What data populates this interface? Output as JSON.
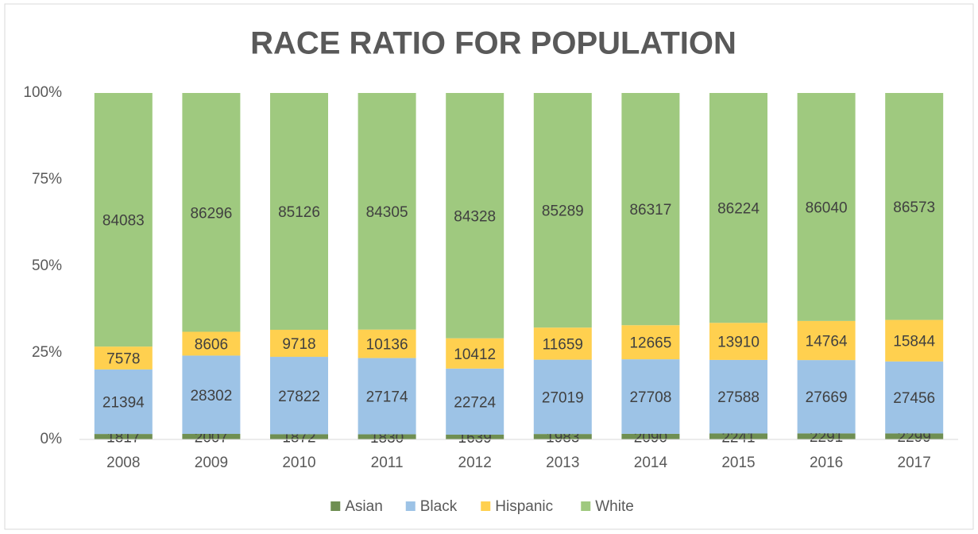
{
  "chart_data": {
    "type": "bar",
    "stacking": "percent",
    "title": "RACE RATIO FOR POPULATION",
    "categories": [
      "2008",
      "2009",
      "2010",
      "2011",
      "2012",
      "2013",
      "2014",
      "2015",
      "2016",
      "2017"
    ],
    "series": [
      {
        "name": "Asian",
        "color": "#6f8f52",
        "values": [
          1817,
          2007,
          1872,
          1830,
          1639,
          1983,
          2090,
          2241,
          2291,
          2299
        ]
      },
      {
        "name": "Black",
        "color": "#9dc3e6",
        "values": [
          21394,
          28302,
          27822,
          27174,
          22724,
          27019,
          27708,
          27588,
          27669,
          27456
        ]
      },
      {
        "name": "Hispanic",
        "color": "#ffd04f",
        "values": [
          7578,
          8606,
          9718,
          10136,
          10412,
          11659,
          12665,
          13910,
          14764,
          15844
        ]
      },
      {
        "name": "White",
        "color": "#9fc97f",
        "values": [
          84083,
          86296,
          85126,
          84305,
          84328,
          85289,
          86317,
          86224,
          86040,
          86573
        ]
      }
    ],
    "ylim": [
      0,
      100
    ],
    "yticks": [
      {
        "value": 0,
        "label": "0%"
      },
      {
        "value": 25,
        "label": "25%"
      },
      {
        "value": 50,
        "label": "50%"
      },
      {
        "value": 75,
        "label": "75%"
      },
      {
        "value": 100,
        "label": "100%"
      }
    ],
    "grid": false,
    "legend": "bottom"
  }
}
